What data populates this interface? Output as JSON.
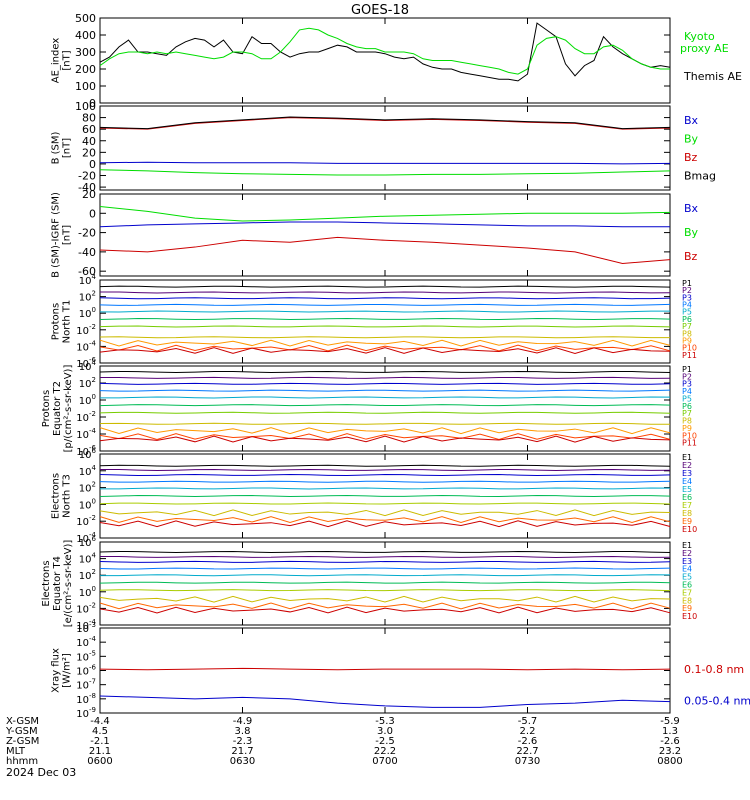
{
  "title": "GOES-18",
  "time_labels": [
    "0600",
    "0630",
    "0700",
    "0730",
    "0800"
  ],
  "date_label": "2024 Dec 03",
  "ephemeris": {
    "rows": [
      {
        "label": "X-GSM",
        "values": [
          "-4.4",
          "-4.9",
          "-5.3",
          "-5.7",
          "-5.9"
        ]
      },
      {
        "label": "Y-GSM",
        "values": [
          "4.5",
          "3.8",
          "3.0",
          "2.2",
          "1.3"
        ]
      },
      {
        "label": "Z-GSM",
        "values": [
          "-2.1",
          "-2.3",
          "-2.5",
          "-2.6",
          "-2.6"
        ]
      },
      {
        "label": "MLT",
        "values": [
          "21.1",
          "21.7",
          "22.2",
          "22.7",
          "23.2"
        ]
      },
      {
        "label": "hhmm",
        "values": [
          "0600",
          "0630",
          "0700",
          "0730",
          "0800"
        ]
      }
    ]
  },
  "colors": {
    "black": "#000000",
    "green": "#00dd00",
    "blue": "#0000cc",
    "red": "#cc0000"
  },
  "chart_data": [
    {
      "type": "line",
      "id": "ae",
      "ylabel": [
        "AE_index",
        "[nT]"
      ],
      "ylim": [
        0,
        500
      ],
      "yticks": [
        0,
        100,
        200,
        300,
        400,
        500
      ],
      "x": [
        0,
        2,
        4,
        6,
        8,
        10,
        12,
        14,
        16,
        18,
        20,
        22,
        24,
        26,
        28,
        30,
        32,
        34,
        36,
        38,
        40,
        42,
        44,
        46,
        48,
        50,
        52,
        54,
        56,
        58,
        60,
        62,
        64,
        66,
        68,
        70,
        72,
        74,
        76,
        78,
        80,
        82,
        84,
        86,
        88,
        90,
        92,
        94,
        96,
        98,
        100,
        102,
        104,
        106,
        108,
        110,
        112,
        114,
        116,
        118,
        120
      ],
      "series": [
        {
          "name": "Themis AE",
          "color": "black",
          "values": [
            240,
            270,
            330,
            370,
            300,
            300,
            290,
            280,
            330,
            360,
            380,
            370,
            330,
            370,
            300,
            290,
            390,
            350,
            350,
            300,
            270,
            290,
            300,
            300,
            320,
            340,
            330,
            300,
            300,
            300,
            290,
            270,
            260,
            270,
            230,
            210,
            200,
            200,
            180,
            170,
            160,
            150,
            140,
            140,
            130,
            170,
            470,
            430,
            390,
            230,
            160,
            220,
            250,
            390,
            330,
            290,
            260,
            230,
            210,
            220,
            210
          ]
        },
        {
          "name": "Kyoto proxy AE",
          "color": "green",
          "values": [
            220,
            260,
            290,
            300,
            300,
            290,
            300,
            290,
            300,
            290,
            280,
            270,
            260,
            270,
            300,
            300,
            290,
            260,
            260,
            300,
            360,
            430,
            440,
            430,
            400,
            380,
            350,
            330,
            320,
            320,
            300,
            300,
            300,
            290,
            260,
            250,
            250,
            250,
            240,
            230,
            220,
            210,
            200,
            180,
            170,
            200,
            340,
            380,
            390,
            370,
            320,
            290,
            290,
            330,
            340,
            310,
            260,
            230,
            210,
            200,
            200
          ]
        }
      ]
    },
    {
      "type": "line",
      "id": "bsm",
      "ylabel": [
        "B (SM)",
        "[nT]"
      ],
      "ylim": [
        -45,
        100
      ],
      "yticks": [
        -40,
        -20,
        0,
        20,
        40,
        60,
        80,
        100
      ],
      "x": [
        0,
        10,
        20,
        30,
        40,
        50,
        60,
        70,
        80,
        90,
        100,
        110,
        120
      ],
      "series": [
        {
          "name": "Bx",
          "color": "blue",
          "values": [
            2,
            3,
            2,
            2,
            2,
            1,
            1,
            1,
            1,
            1,
            1,
            0,
            1
          ]
        },
        {
          "name": "By",
          "color": "green",
          "values": [
            -10,
            -12,
            -15,
            -17,
            -18,
            -19,
            -19,
            -18,
            -18,
            -17,
            -16,
            -14,
            -12
          ]
        },
        {
          "name": "Bz",
          "color": "red",
          "values": [
            62,
            60,
            70,
            75,
            80,
            78,
            75,
            77,
            75,
            72,
            70,
            60,
            62
          ]
        },
        {
          "name": "Bmag",
          "color": "black",
          "values": [
            63,
            61,
            71,
            76,
            81,
            79,
            76,
            78,
            76,
            73,
            71,
            61,
            63
          ]
        }
      ]
    },
    {
      "type": "line",
      "id": "bigrf",
      "ylabel": [
        "B (SM)-IGRF (SM)",
        "[nT]"
      ],
      "ylim": [
        -65,
        20
      ],
      "yticks": [
        -60,
        -40,
        -20,
        0,
        20
      ],
      "x": [
        0,
        10,
        20,
        30,
        40,
        50,
        60,
        70,
        80,
        90,
        100,
        110,
        120
      ],
      "series": [
        {
          "name": "Bx",
          "color": "blue",
          "values": [
            -14,
            -12,
            -11,
            -10,
            -9,
            -9,
            -10,
            -11,
            -12,
            -13,
            -13,
            -14,
            -14
          ]
        },
        {
          "name": "By",
          "color": "green",
          "values": [
            7,
            2,
            -5,
            -8,
            -7,
            -5,
            -3,
            -2,
            -1,
            0,
            0,
            0,
            1
          ]
        },
        {
          "name": "Bz",
          "color": "red",
          "values": [
            -38,
            -40,
            -35,
            -28,
            -30,
            -25,
            -28,
            -30,
            -33,
            -36,
            -40,
            -52,
            -48
          ]
        }
      ]
    },
    {
      "type": "line",
      "id": "pnorth",
      "log": true,
      "ylabel": [
        "Protons",
        "North T1"
      ],
      "ylim_exp": [
        -6,
        4
      ],
      "ytick_exps": [
        -6,
        -4,
        -2,
        0,
        2,
        4
      ],
      "channels": [
        "P1",
        "P2",
        "P3",
        "P4",
        "P5",
        "P6",
        "P7",
        "P8",
        "P9",
        "P10",
        "P11"
      ],
      "channel_colors": [
        "#000000",
        "#550077",
        "#0000cc",
        "#0077ff",
        "#00aacc",
        "#00bb55",
        "#77cc00",
        "#ccbb00",
        "#ff9900",
        "#ff4400",
        "#cc0000"
      ],
      "levels_exp": [
        3.2,
        2.5,
        1.8,
        1.0,
        0.2,
        -0.7,
        -1.6,
        -2.9,
        -3.6,
        -4.2,
        -4.5
      ]
    },
    {
      "type": "line",
      "id": "pequator",
      "log": true,
      "ylabel": [
        "Protons",
        "Equator T2",
        "[p/(cm²-s-sr-keV)]"
      ],
      "ylim_exp": [
        -6,
        4
      ],
      "ytick_exps": [
        -6,
        -4,
        -2,
        0,
        2,
        4
      ],
      "channels": [
        "P1",
        "P2",
        "P3",
        "P4",
        "P5",
        "P6",
        "P7",
        "P8",
        "P9",
        "P10",
        "P11"
      ],
      "channel_colors": [
        "#000000",
        "#550077",
        "#0000cc",
        "#0077ff",
        "#00aacc",
        "#00bb55",
        "#77cc00",
        "#ccbb00",
        "#ff9900",
        "#ff4400",
        "#cc0000"
      ],
      "levels_exp": [
        3.3,
        2.6,
        1.9,
        1.1,
        0.3,
        -0.6,
        -1.5,
        -2.8,
        -3.6,
        -4.3,
        -4.6
      ]
    },
    {
      "type": "line",
      "id": "enorth",
      "log": true,
      "ylabel": [
        "Electrons",
        "North T3"
      ],
      "ylim_exp": [
        -4,
        6
      ],
      "ytick_exps": [
        -4,
        -2,
        0,
        2,
        4,
        6
      ],
      "channels": [
        "E1",
        "E2",
        "E3",
        "E4",
        "E5",
        "E6",
        "E7",
        "E8",
        "E9",
        "E10"
      ],
      "channel_colors": [
        "#000000",
        "#550077",
        "#0000cc",
        "#0077ff",
        "#00aacc",
        "#00bb55",
        "#aacc00",
        "#ccbb00",
        "#ff6600",
        "#cc0000"
      ],
      "levels_exp": [
        4.6,
        4.1,
        3.5,
        2.7,
        1.9,
        1.0,
        0.1,
        -1.0,
        -1.8,
        -2.3
      ]
    },
    {
      "type": "line",
      "id": "eequator",
      "log": true,
      "ylabel": [
        "Electrons",
        "Equator T4",
        "[e/(cm²-s-sr-keV)]"
      ],
      "ylim_exp": [
        -4,
        6
      ],
      "ytick_exps": [
        -4,
        -2,
        0,
        2,
        4,
        6
      ],
      "channels": [
        "E1",
        "E2",
        "E3",
        "E4",
        "E5",
        "E6",
        "E7",
        "E8",
        "E9",
        "E10"
      ],
      "channel_colors": [
        "#000000",
        "#550077",
        "#0000cc",
        "#0077ff",
        "#00aacc",
        "#00bb55",
        "#aacc00",
        "#ccbb00",
        "#ff6600",
        "#cc0000"
      ],
      "levels_exp": [
        4.8,
        4.2,
        3.6,
        2.8,
        2.0,
        1.1,
        0.2,
        -0.9,
        -1.7,
        -2.2
      ]
    },
    {
      "type": "line",
      "id": "xray",
      "log": true,
      "ylabel": [
        "Xray flux",
        "[W/m²]"
      ],
      "ylim_exp": [
        -9,
        -3
      ],
      "ytick_exps": [
        -9,
        -8,
        -7,
        -6,
        -5,
        -4,
        -3
      ],
      "x": [
        0,
        10,
        20,
        30,
        40,
        50,
        60,
        70,
        80,
        90,
        100,
        110,
        120
      ],
      "series": [
        {
          "name": "0.1-0.8 nm",
          "color": "red",
          "values_exp": [
            -5.9,
            -5.95,
            -5.9,
            -5.85,
            -5.9,
            -5.95,
            -5.9,
            -5.9,
            -5.9,
            -5.95,
            -5.9,
            -5.95,
            -5.9
          ]
        },
        {
          "name": "0.05-0.4 nm",
          "color": "blue",
          "values_exp": [
            -7.8,
            -7.9,
            -8.0,
            -7.9,
            -8.0,
            -8.3,
            -8.5,
            -8.6,
            -8.6,
            -8.4,
            -8.3,
            -8.1,
            -8.2
          ]
        }
      ]
    }
  ]
}
